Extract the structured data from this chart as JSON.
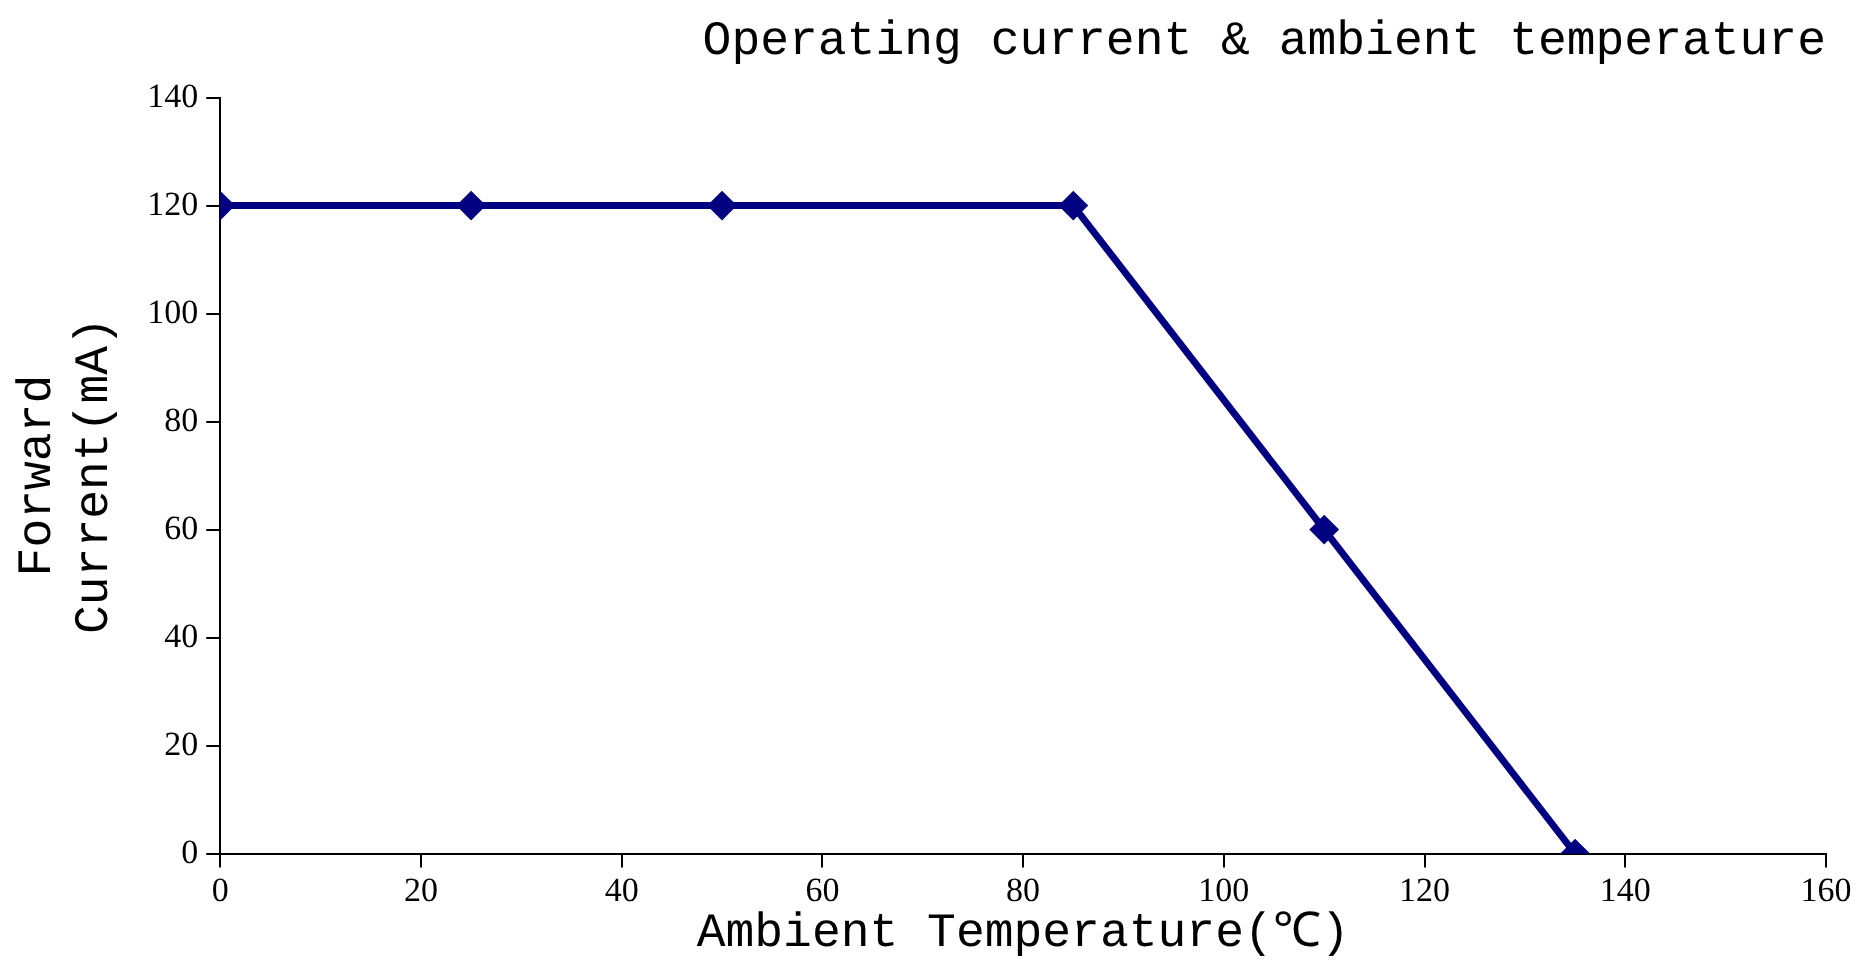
{
  "chart_data": {
    "type": "line",
    "title": "Operating current & ambient temperature",
    "xlabel": "Ambient Temperature(℃)",
    "ylabel": "Forward Current(mA)",
    "x": [
      0,
      25,
      50,
      85,
      110,
      135
    ],
    "series": [
      {
        "color": "#000080",
        "values": [
          120,
          120,
          120,
          120,
          60,
          0
        ]
      }
    ],
    "xlim": [
      0,
      160
    ],
    "xticks": [
      0,
      20,
      40,
      60,
      80,
      100,
      120,
      140,
      160
    ],
    "ylim": [
      0,
      140
    ],
    "yticks": [
      0,
      20,
      40,
      60,
      80,
      100,
      120,
      140
    ],
    "marker": "diamond",
    "line_style": "solid",
    "legend": false
  }
}
